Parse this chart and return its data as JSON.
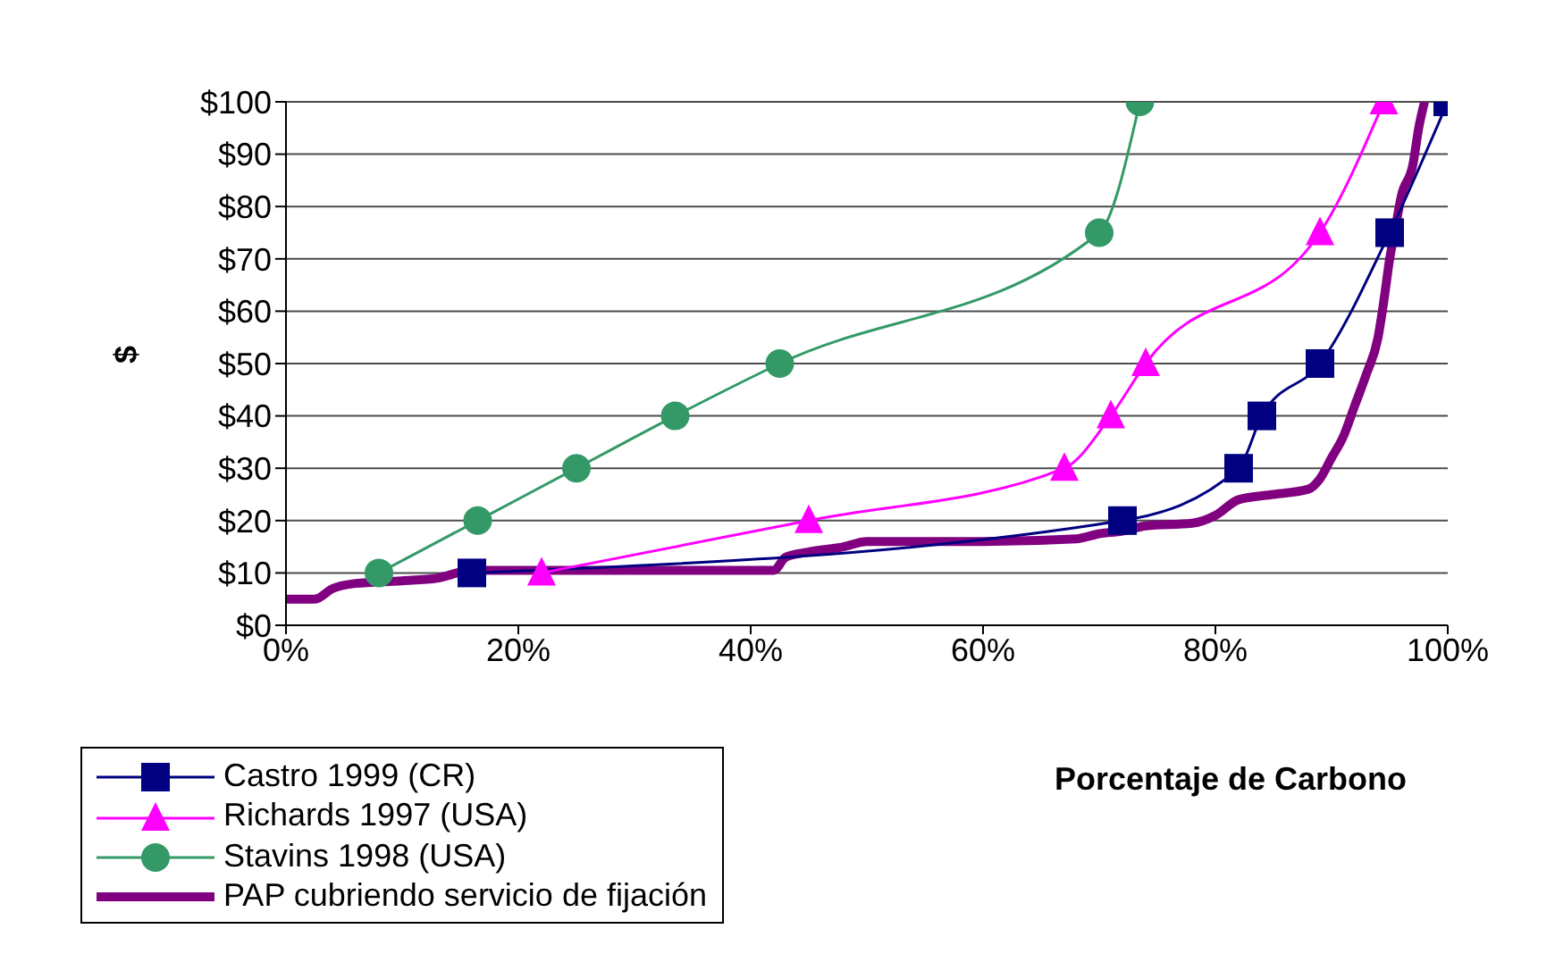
{
  "chart_data": {
    "type": "line",
    "ylabel": "$",
    "xlabel": "Porcentaje de Carbono",
    "xlim": [
      0,
      100
    ],
    "xticks": [
      {
        "value": 0,
        "label": "0%"
      },
      {
        "value": 20,
        "label": "20%"
      },
      {
        "value": 40,
        "label": "40%"
      },
      {
        "value": 60,
        "label": "60%"
      },
      {
        "value": 80,
        "label": "80%"
      },
      {
        "value": 100,
        "label": "100%"
      }
    ],
    "ylim": [
      0,
      100
    ],
    "yticks": [
      {
        "value": 0,
        "label": "$0"
      },
      {
        "value": 10,
        "label": "$10"
      },
      {
        "value": 20,
        "label": "$20"
      },
      {
        "value": 30,
        "label": "$30"
      },
      {
        "value": 40,
        "label": "$40"
      },
      {
        "value": 50,
        "label": "$50"
      },
      {
        "value": 60,
        "label": "$60"
      },
      {
        "value": 70,
        "label": "$70"
      },
      {
        "value": 80,
        "label": "$80"
      },
      {
        "value": 90,
        "label": "$90"
      },
      {
        "value": 100,
        "label": "$100"
      }
    ],
    "grid": "y",
    "legend": "bottom left",
    "series": [
      {
        "name": "Castro 1999 (CR)",
        "color": "#000080",
        "marker": "square",
        "x": [
          16,
          72,
          82,
          84,
          89,
          95,
          100
        ],
        "values": [
          10,
          20,
          30,
          40,
          50,
          75,
          100
        ]
      },
      {
        "name": "Richards 1997 (USA)",
        "color": "#ff00ff",
        "marker": "triangle",
        "x": [
          22,
          45,
          67,
          71,
          74,
          89,
          94.5
        ],
        "values": [
          10,
          20,
          30,
          40,
          50,
          75,
          100
        ]
      },
      {
        "name": "Stavins 1998 (USA)",
        "color": "#339966",
        "marker": "circle",
        "x": [
          8,
          16.5,
          25,
          33.5,
          42.5,
          70,
          73.5
        ],
        "values": [
          10,
          20,
          30,
          40,
          50,
          75,
          100
        ]
      },
      {
        "name": "PAP cubriendo servicio de fijación",
        "color": "#800080",
        "marker": "none",
        "x": [
          0,
          2.5,
          4,
          6,
          10,
          13,
          16,
          42,
          43,
          45,
          48,
          50,
          60,
          68,
          70,
          72,
          74,
          78,
          80,
          82,
          85,
          88,
          89,
          90,
          91,
          92,
          93,
          94,
          94.5,
          95,
          95.5,
          96,
          97,
          97.5,
          98
        ],
        "values": [
          5,
          5,
          7,
          8,
          8.5,
          9,
          10.5,
          10.5,
          13,
          14,
          15,
          16,
          16,
          16.5,
          17.5,
          18,
          19,
          19.5,
          21,
          24,
          25,
          26,
          28,
          32,
          36,
          42,
          48,
          55,
          62,
          70,
          76,
          82,
          88,
          95,
          100
        ]
      }
    ]
  }
}
